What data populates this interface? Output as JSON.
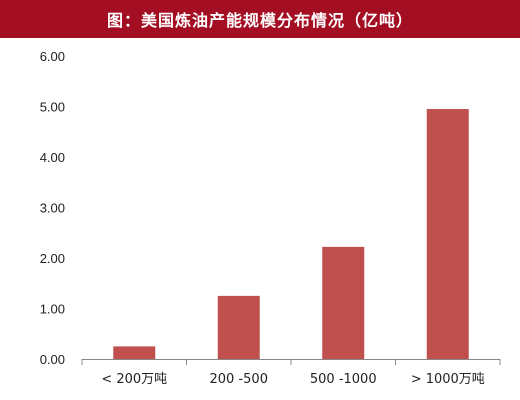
{
  "header": {
    "title": "图：美国炼油产能规模分布情况（亿吨）"
  },
  "chart_data": {
    "type": "bar",
    "title": "图：美国炼油产能规模分布情况（亿吨）",
    "categories": [
      "< 200万吨",
      "200 -500",
      "500 -1000",
      "> 1000万吨"
    ],
    "values": [
      0.25,
      1.25,
      2.22,
      4.95
    ],
    "ylim": [
      0,
      6
    ],
    "yticks": [
      "0.00",
      "1.00",
      "2.00",
      "3.00",
      "4.00",
      "5.00",
      "6.00"
    ],
    "xlabel": "",
    "ylabel": "",
    "grid": false,
    "bar_color": "#c0504d"
  }
}
